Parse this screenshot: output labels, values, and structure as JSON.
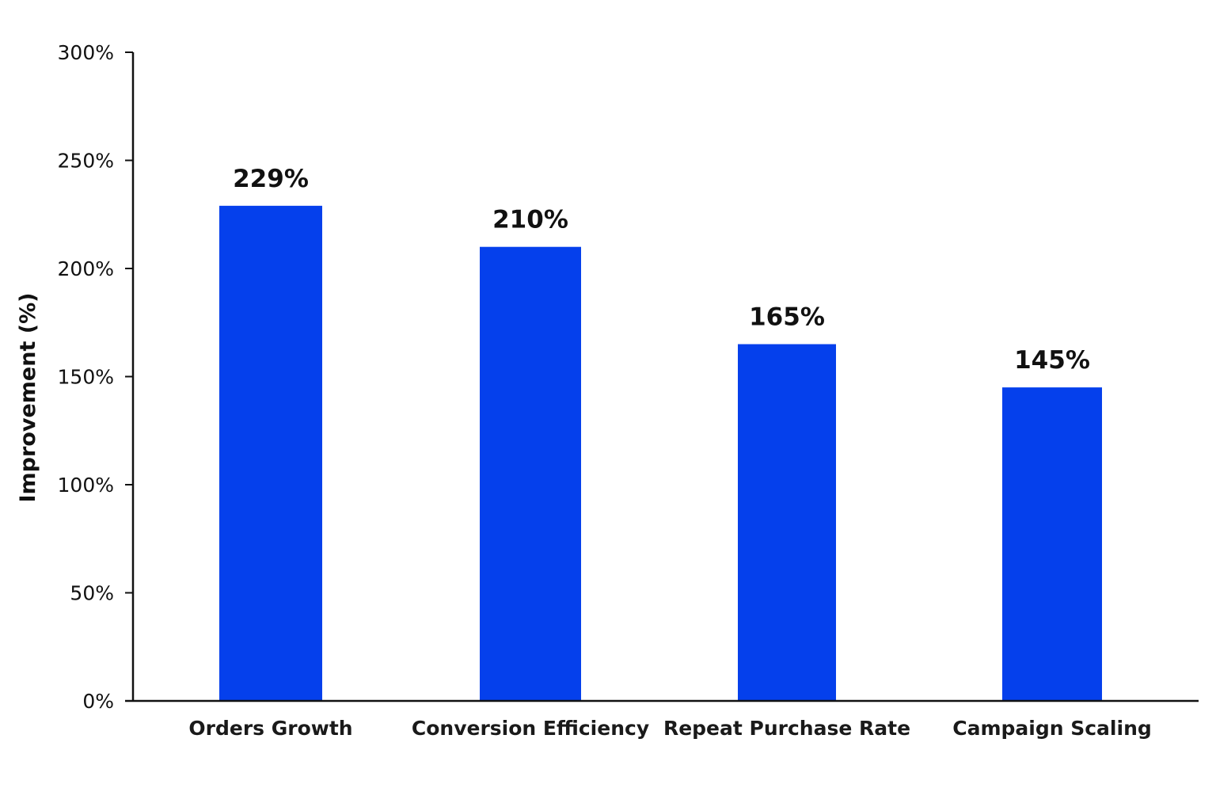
{
  "chart_data": {
    "type": "bar",
    "categories": [
      "Orders Growth",
      "Conversion Efficiency",
      "Repeat Purchase Rate",
      "Campaign Scaling"
    ],
    "values": [
      229,
      210,
      165,
      145
    ],
    "value_labels": [
      "229%",
      "210%",
      "165%",
      "145%"
    ],
    "title": "",
    "xlabel": "",
    "ylabel": "Improvement (%)",
    "ylim": [
      0,
      300
    ],
    "yticks": [
      0,
      50,
      100,
      150,
      200,
      250,
      300
    ],
    "ytick_labels": [
      "0%",
      "50%",
      "100%",
      "150%",
      "200%",
      "250%",
      "300%"
    ],
    "grid": false,
    "legend": "none",
    "bar_color": "#0540ec"
  }
}
